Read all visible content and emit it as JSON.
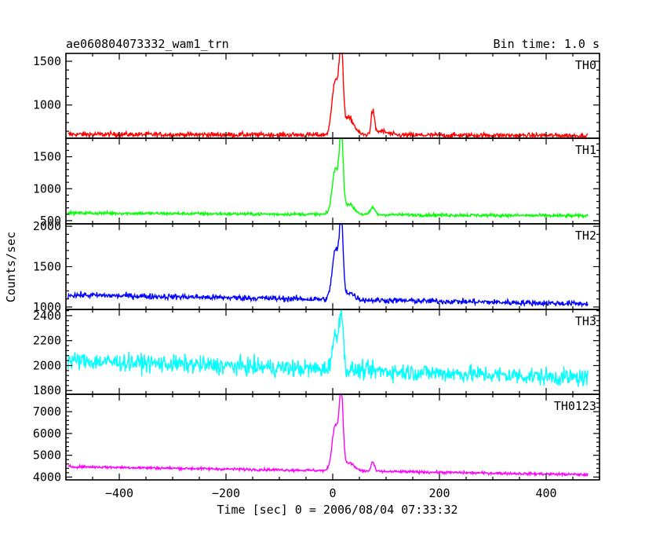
{
  "header": {
    "title": "ae060804073332_wam1_trn",
    "bin_time": "Bin time: 1.0 s"
  },
  "ylabel": "Counts/sec",
  "xlabel": "Time [sec] 0 = 2006/08/04 07:33:32",
  "chart_data": {
    "type": "line",
    "title": "ae060804073332_wam1_trn",
    "subtitle": "Bin time: 1.0 s",
    "xlabel": "Time [sec] 0 = 2006/08/04 07:33:32",
    "ylabel": "Counts/sec",
    "xlim": [
      -500,
      500
    ],
    "x_range_data": [
      -496,
      478
    ],
    "xticks": [
      -400,
      -200,
      0,
      200,
      400
    ],
    "grid": false,
    "legend": "none",
    "panels": [
      {
        "name": "TH0",
        "color": "#ff0000",
        "ylim": [
          620,
          1590
        ],
        "yticks": [
          1000,
          1500
        ],
        "baseline": [
          [
            -496,
            665
          ],
          [
            478,
            650
          ]
        ],
        "noise": 28,
        "features": [
          {
            "t": 5,
            "peak": 1300,
            "width": 6
          },
          {
            "t": 16,
            "peak": 1580,
            "width": 3.5
          },
          {
            "t": 30,
            "peak": 850,
            "width": 10
          },
          {
            "t": 75,
            "peak": 920,
            "width": 3
          },
          {
            "t": 90,
            "peak": 700,
            "width": 12
          }
        ]
      },
      {
        "name": "TH1",
        "color": "#00ff00",
        "ylim": [
          450,
          1790
        ],
        "yticks": [
          500,
          1000,
          1500
        ],
        "baseline": [
          [
            -496,
            620
          ],
          [
            478,
            575
          ]
        ],
        "noise": 25,
        "features": [
          {
            "t": 5,
            "peak": 1300,
            "width": 6
          },
          {
            "t": 16,
            "peak": 1780,
            "width": 3.5
          },
          {
            "t": 30,
            "peak": 760,
            "width": 10
          },
          {
            "t": 75,
            "peak": 710,
            "width": 4
          }
        ]
      },
      {
        "name": "TH2",
        "color": "#0000ff",
        "ylim": [
          970,
          2030
        ],
        "yticks": [
          1000,
          1500,
          2000
        ],
        "baseline": [
          [
            -496,
            1150
          ],
          [
            478,
            1040
          ]
        ],
        "noise": 35,
        "features": [
          {
            "t": 5,
            "peak": 1700,
            "width": 6
          },
          {
            "t": 16,
            "peak": 2000,
            "width": 3.5
          },
          {
            "t": 30,
            "peak": 1180,
            "width": 10
          }
        ]
      },
      {
        "name": "TH3",
        "color": "#00ffff",
        "ylim": [
          1770,
          2450
        ],
        "yticks": [
          1800,
          2000,
          2200,
          2400
        ],
        "baseline": [
          [
            -496,
            2040
          ],
          [
            478,
            1900
          ]
        ],
        "noise": 70,
        "features": [
          {
            "t": 5,
            "peak": 2230,
            "width": 6
          },
          {
            "t": 16,
            "peak": 2430,
            "width": 3.5
          }
        ]
      },
      {
        "name": "TH0123",
        "color": "#ff00ff",
        "ylim": [
          3870,
          7800
        ],
        "yticks": [
          4000,
          5000,
          6000,
          7000
        ],
        "baseline": [
          [
            -496,
            4480
          ],
          [
            478,
            4110
          ]
        ],
        "noise": 60,
        "features": [
          {
            "t": 5,
            "peak": 6400,
            "width": 6
          },
          {
            "t": 16,
            "peak": 7700,
            "width": 3.5
          },
          {
            "t": 30,
            "peak": 4650,
            "width": 10
          },
          {
            "t": 75,
            "peak": 4700,
            "width": 3
          }
        ]
      }
    ]
  }
}
